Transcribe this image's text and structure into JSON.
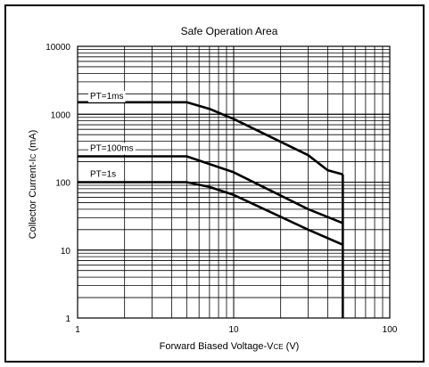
{
  "chart_data": {
    "type": "line",
    "title": "Safe Operation Area",
    "xlabel": {
      "pre": "Forward Biased Voltage-V",
      "sub": "CE",
      "post": " (V)"
    },
    "ylabel": {
      "pre": "Collector Current-I",
      "sub": "C",
      "post": " (mA)"
    },
    "x_scale": "log",
    "y_scale": "log",
    "xlim": [
      1,
      100
    ],
    "ylim": [
      1,
      10000
    ],
    "x_ticks": [
      {
        "value": 1,
        "label": "1"
      },
      {
        "value": 10,
        "label": "10"
      },
      {
        "value": 100,
        "label": "100"
      }
    ],
    "y_ticks": [
      {
        "value": 1,
        "label": "1"
      },
      {
        "value": 10,
        "label": "10"
      },
      {
        "value": 100,
        "label": "100"
      },
      {
        "value": 1000,
        "label": "1000"
      },
      {
        "value": 10000,
        "label": "10000"
      }
    ],
    "grid": true,
    "series": [
      {
        "name": "PT=1ms",
        "x": [
          1,
          5,
          7,
          10,
          30,
          40,
          50
        ],
        "y": [
          1500,
          1500,
          1200,
          850,
          250,
          150,
          130
        ]
      },
      {
        "name": "PT=100ms",
        "x": [
          1,
          5,
          10,
          30,
          50
        ],
        "y": [
          240,
          240,
          140,
          40,
          25
        ]
      },
      {
        "name": "PT=1s",
        "x": [
          1,
          5,
          7,
          10,
          30,
          50
        ],
        "y": [
          100,
          100,
          85,
          65,
          20,
          12
        ]
      }
    ],
    "vertical_limit": {
      "x": 50,
      "y_top": 130,
      "y_bottom": 1
    },
    "annotations": [
      {
        "text": "PT=1ms",
        "series": 0
      },
      {
        "text": "PT=100ms",
        "series": 1
      },
      {
        "text": "PT=1s",
        "series": 2
      }
    ]
  }
}
